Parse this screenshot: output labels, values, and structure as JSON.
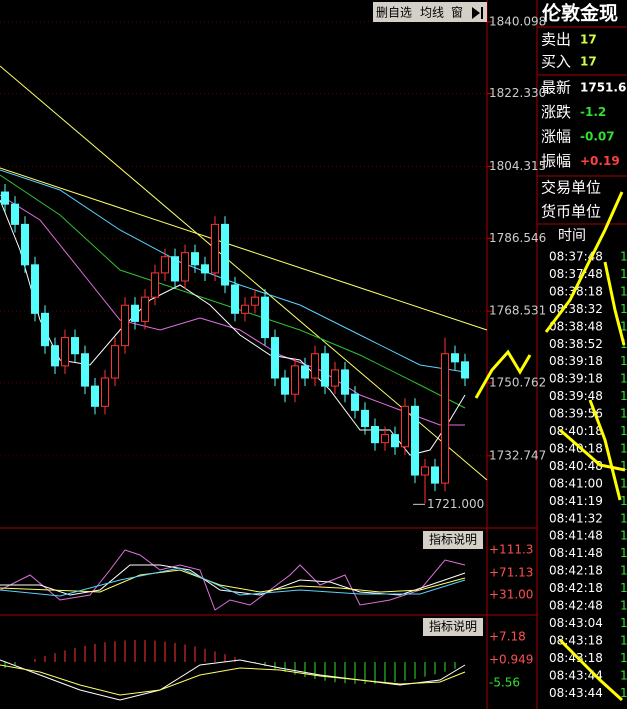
{
  "toolbar": {
    "buttons": [
      "删自选",
      "均线",
      "窗"
    ]
  },
  "chart_data": {
    "type": "candlestick",
    "open": [
      1798,
      1795,
      1790,
      1780,
      1768,
      1760,
      1755,
      1762,
      1758,
      1750,
      1745,
      1752,
      1760,
      1770,
      1766,
      1772,
      1778,
      1782,
      1776,
      1783,
      1780,
      1778,
      1790,
      1775,
      1768,
      1770,
      1772,
      1762,
      1752,
      1748,
      1755,
      1752,
      1758,
      1750,
      1754,
      1748,
      1744,
      1740,
      1736,
      1738,
      1735,
      1745,
      1728,
      1730,
      1726,
      1758,
      1756
    ],
    "high": [
      1800,
      1797,
      1792,
      1782,
      1770,
      1762,
      1764,
      1764,
      1760,
      1752,
      1754,
      1762,
      1772,
      1772,
      1774,
      1780,
      1784,
      1784,
      1785,
      1785,
      1782,
      1792,
      1792,
      1777,
      1772,
      1774,
      1774,
      1764,
      1754,
      1757,
      1757,
      1760,
      1760,
      1756,
      1756,
      1750,
      1746,
      1742,
      1740,
      1740,
      1747,
      1747,
      1732,
      1732,
      1762,
      1760,
      1758
    ],
    "low": [
      1793,
      1788,
      1778,
      1766,
      1758,
      1753,
      1753,
      1756,
      1748,
      1743,
      1743,
      1750,
      1758,
      1764,
      1764,
      1770,
      1776,
      1774,
      1774,
      1778,
      1776,
      1776,
      1773,
      1766,
      1766,
      1768,
      1760,
      1750,
      1746,
      1746,
      1750,
      1750,
      1748,
      1748,
      1746,
      1742,
      1738,
      1734,
      1734,
      1733,
      1733,
      1726,
      1721,
      1724,
      1724,
      1754,
      1750
    ],
    "close": [
      1795,
      1790,
      1780,
      1768,
      1760,
      1755,
      1762,
      1758,
      1750,
      1745,
      1752,
      1760,
      1770,
      1766,
      1772,
      1778,
      1782,
      1776,
      1783,
      1780,
      1778,
      1790,
      1775,
      1768,
      1770,
      1772,
      1762,
      1752,
      1748,
      1755,
      1752,
      1758,
      1750,
      1754,
      1748,
      1744,
      1740,
      1736,
      1738,
      1735,
      1745,
      1728,
      1730,
      1726,
      1758,
      1756,
      1752
    ],
    "ylim": [
      1714.9,
      1845.5
    ],
    "yticks": [
      1840.098,
      {
        "value": 1822.33,
        "label": "1822.330"
      },
      1804.315,
      1786.546,
      1768.531,
      1750.762,
      1732.747
    ],
    "annotation": {
      "value": 1721,
      "label": "1721.000"
    }
  },
  "indicator_1": {
    "button": "指标说明",
    "labels": [
      "+111.3",
      "+71.13",
      "+31.00"
    ]
  },
  "indicator_2": {
    "button": "指标说明",
    "labels": [
      "+7.18",
      "+0.949",
      "-5.56"
    ]
  },
  "quote": {
    "title": "伦敦金现",
    "rows": [
      {
        "label": "卖出",
        "value": "17"
      },
      {
        "label": "买入",
        "value": "17"
      },
      {
        "label": "最新",
        "value": "1751.6"
      },
      {
        "label": "涨跌",
        "value": "-1.2"
      },
      {
        "label": "涨幅",
        "value": "-0.07"
      },
      {
        "label": "振幅",
        "value": "+0.19"
      }
    ],
    "units": [
      "交易单位",
      "货币单位"
    ],
    "time_header": "时间",
    "ticks": [
      {
        "time": "08:37:48",
        "value": "1"
      },
      {
        "time": "08:37:48",
        "value": "1"
      },
      {
        "time": "08:38:18",
        "value": "1"
      },
      {
        "time": "08:38:32",
        "value": "1"
      },
      {
        "time": "08:38:48",
        "value": "1"
      },
      {
        "time": "08:38:52",
        "value": "1"
      },
      {
        "time": "08:39:18",
        "value": "1"
      },
      {
        "time": "08:39:18",
        "value": "1"
      },
      {
        "time": "08:39:48",
        "value": "1"
      },
      {
        "time": "08:39:56",
        "value": "1"
      },
      {
        "time": "08:40:18",
        "value": "1"
      },
      {
        "time": "08:40:18",
        "value": "1"
      },
      {
        "time": "08:40:48",
        "value": "1"
      },
      {
        "time": "08:41:00",
        "value": "1"
      },
      {
        "time": "08:41:19",
        "value": "1"
      },
      {
        "time": "08:41:32",
        "value": "1"
      },
      {
        "time": "08:41:48",
        "value": "1"
      },
      {
        "time": "08:41:48",
        "value": "1"
      },
      {
        "time": "08:42:18",
        "value": "1"
      },
      {
        "time": "08:42:18",
        "value": "1"
      },
      {
        "time": "08:42:48",
        "value": "1"
      },
      {
        "time": "08:43:04",
        "value": "1"
      },
      {
        "time": "08:43:18",
        "value": "1"
      },
      {
        "time": "08:43:18",
        "value": "1"
      },
      {
        "time": "08:43:44",
        "value": "1"
      },
      {
        "time": "08:43:44",
        "value": "1"
      }
    ]
  }
}
